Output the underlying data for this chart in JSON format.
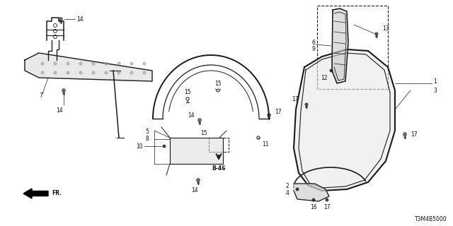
{
  "bg_color": "#ffffff",
  "diagram_code": "T3M4B5000",
  "reference_code": "B-46",
  "fr_label": "FR.",
  "line_color": "#1a1a1a",
  "text_color": "#111111",
  "fs": 5.5,
  "fs_bold": 6.5
}
